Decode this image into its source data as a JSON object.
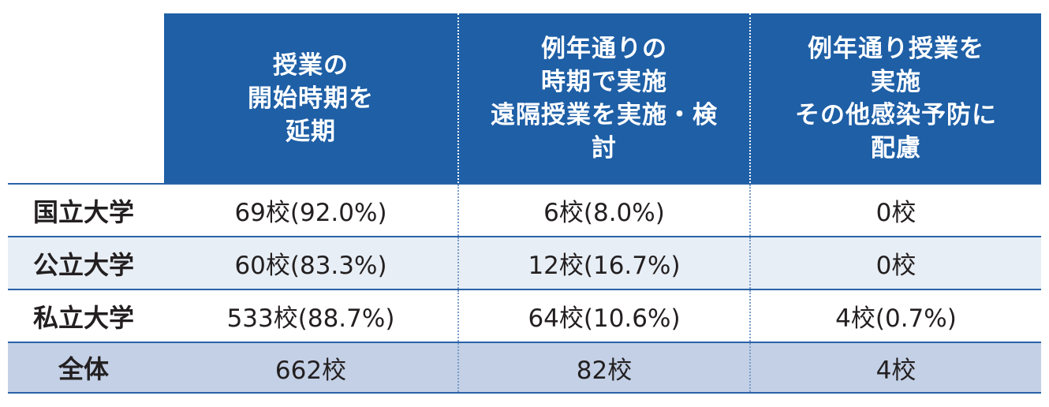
{
  "chart_data": {
    "type": "table",
    "columns": [
      {
        "lines": [
          "授業の",
          "開始時期を",
          "延期"
        ]
      },
      {
        "lines": [
          "例年通りの",
          "時期で実施",
          "遠隔授業を実施・検",
          "討"
        ]
      },
      {
        "lines": [
          "例年通り授業を",
          "実施",
          "その他感染予防に",
          "配慮"
        ]
      }
    ],
    "rows": [
      {
        "label": "国立大学",
        "cells": [
          "69校(92.0%)",
          "6校(8.0%)",
          "0校"
        ]
      },
      {
        "label": "公立大学",
        "cells": [
          "60校(83.3%)",
          "12校(16.7%)",
          "0校"
        ]
      },
      {
        "label": "私立大学",
        "cells": [
          "533校(88.7%)",
          "64校(10.6%)",
          "4校(0.7%)"
        ]
      },
      {
        "label": "全体",
        "cells": [
          "662校",
          "82校",
          "4校"
        ]
      }
    ]
  },
  "colors": {
    "header_bg": "#1e5fa6",
    "header_text": "#ffffff",
    "row_alt_bg": "#e8eef5",
    "total_bg": "#c3d0e6",
    "rule": "#2a63a8"
  }
}
